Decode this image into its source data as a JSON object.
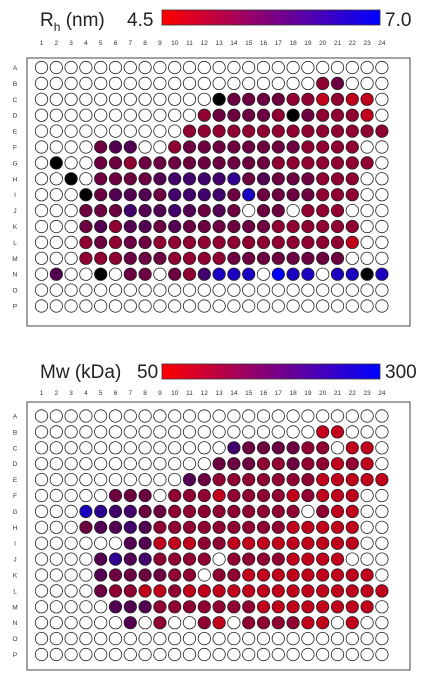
{
  "panels": [
    {
      "title_main": "R",
      "title_sub": "h",
      "title_unit": " (nm)",
      "scale_min_label": "4.5",
      "scale_max_label": "7.0"
    },
    {
      "title_main": "Mw (kDa)",
      "scale_min_label": "50",
      "scale_max_label": "300"
    }
  ],
  "colors": {
    "empty": "#ffffff",
    "low": "#ff0000",
    "high": "#0000ff",
    "flag": "#000000"
  },
  "chart_data": [
    {
      "type": "heatmap",
      "title": "Rh (nm)",
      "colorbar": {
        "min": 4.5,
        "max": 7.0,
        "low_color": "#ff0000",
        "high_color": "#0000ff"
      },
      "columns": [
        "1",
        "2",
        "3",
        "4",
        "5",
        "6",
        "7",
        "8",
        "9",
        "10",
        "11",
        "12",
        "13",
        "14",
        "15",
        "16",
        "17",
        "18",
        "19",
        "20",
        "21",
        "22",
        "23",
        "24"
      ],
      "rows": [
        "A",
        "B",
        "C",
        "D",
        "E",
        "F",
        "G",
        "H",
        "I",
        "J",
        "K",
        "L",
        "M",
        "N",
        "O",
        "P"
      ],
      "legend_codes": {
        ".": "empty",
        "k": "black (flag)",
        "1-9": "value bin from 4.5 (1) to 7.0 (9)"
      },
      "grid": [
        "........................",
        "...................34...",
        "............k4444332322.",
        "...........344443k43332.",
        "..........33333333333333",
        "....455..3444444443333..",
        ".k..4434444444443333333.",
        "..k.444456666745444333..",
        "...k455546666484444333..",
        "...44465565454.44.333...",
        "...4535545444444333333..",
        "...3434433333333333332..",
        "...333444333344444444...",
        ".5..k.44.436888.988.88k8",
        "........................",
        "........................"
      ]
    },
    {
      "type": "heatmap",
      "title": "Mw (kDa)",
      "colorbar": {
        "min": 50,
        "max": 300,
        "low_color": "#ff0000",
        "high_color": "#0000ff"
      },
      "columns": [
        "1",
        "2",
        "3",
        "4",
        "5",
        "6",
        "7",
        "8",
        "9",
        "10",
        "11",
        "12",
        "13",
        "14",
        "15",
        "16",
        "17",
        "18",
        "19",
        "20",
        "21",
        "22",
        "23",
        "24"
      ],
      "rows": [
        "A",
        "B",
        "C",
        "D",
        "E",
        "F",
        "G",
        "H",
        "I",
        "J",
        "K",
        "L",
        "M",
        "N",
        "O",
        "P"
      ],
      "legend_codes": {
        ".": "empty",
        "1-9": "value bin from 50 (1) to 300 (9)"
      },
      "grid": [
        "........................",
        "...................22...",
        ".............6444433.22.",
        "............44433433232.",
        "..........54333333322222",
        ".....444.3332333323222..",
        "...876644333333333.322..",
        "...4556533333333322222..",
        "......5522233222222222..",
        "....57563333.33332222...",
        "....5444433.33222222222.",
        "....43322322222222222222",
        ".....555333333322222222.",
        "......5.3..32.333322.2..",
        "........................",
        "........................"
      ]
    }
  ]
}
